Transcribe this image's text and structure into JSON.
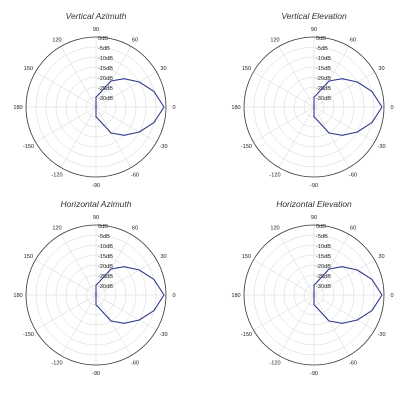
{
  "colors": {
    "pattern": "#2e3a8c",
    "outer_ring": "#333333",
    "grid": "#d4d4d4",
    "text": "#222222"
  },
  "angle_ticks": [
    "90",
    "60",
    "30",
    "0",
    "-30",
    "-60",
    "-90",
    "-120",
    "-150",
    "180",
    "150",
    "120"
  ],
  "radial_labels": [
    "0dB",
    "-5dB",
    "-10dB",
    "-15dB",
    "-20dB",
    "-25dB",
    "-30dB"
  ],
  "chart_data": [
    {
      "type": "polar-line",
      "title": "Vertical Azimuth",
      "theta_ticks_deg": [
        90,
        60,
        30,
        0,
        -30,
        -60,
        -90,
        -120,
        -150,
        180,
        150,
        120
      ],
      "r_ticks_db": [
        0,
        -5,
        -10,
        -15,
        -20,
        -25,
        -30
      ],
      "rlim_db": [
        -35,
        0
      ],
      "pattern": {
        "theta_deg": [
          -90,
          -80,
          -60,
          -45,
          -30,
          -15,
          0,
          15,
          30,
          45,
          60,
          80,
          90
        ],
        "gain_db": [
          -30,
          -29,
          -20,
          -15,
          -10,
          -5,
          -1,
          -5,
          -10,
          -15,
          -20,
          -29,
          -30
        ]
      }
    },
    {
      "type": "polar-line",
      "title": "Vertical Elevation",
      "theta_ticks_deg": [
        90,
        60,
        30,
        0,
        -30,
        -60,
        -90,
        -120,
        -150,
        180,
        150,
        120
      ],
      "r_ticks_db": [
        0,
        -5,
        -10,
        -15,
        -20,
        -25,
        -30
      ],
      "rlim_db": [
        -35,
        0
      ],
      "pattern": {
        "theta_deg": [
          -90,
          -80,
          -60,
          -45,
          -30,
          -15,
          0,
          15,
          30,
          45,
          60,
          80,
          90
        ],
        "gain_db": [
          -30,
          -29,
          -20,
          -15,
          -10,
          -5,
          -1,
          -5,
          -10,
          -15,
          -20,
          -29,
          -30
        ]
      }
    },
    {
      "type": "polar-line",
      "title": "Horizontal Azimuth",
      "theta_ticks_deg": [
        90,
        60,
        30,
        0,
        -30,
        -60,
        -90,
        -120,
        -150,
        180,
        150,
        120
      ],
      "r_ticks_db": [
        0,
        -5,
        -10,
        -15,
        -20,
        -25,
        -30
      ],
      "rlim_db": [
        -35,
        0
      ],
      "pattern": {
        "theta_deg": [
          -90,
          -80,
          -60,
          -45,
          -30,
          -15,
          0,
          15,
          30,
          45,
          60,
          80,
          90
        ],
        "gain_db": [
          -30,
          -29,
          -20,
          -15,
          -10,
          -5,
          -1,
          -5,
          -10,
          -15,
          -20,
          -29,
          -30
        ]
      }
    },
    {
      "type": "polar-line",
      "title": "Horizontal Elevation",
      "theta_ticks_deg": [
        90,
        60,
        30,
        0,
        -30,
        -60,
        -90,
        -120,
        -150,
        180,
        150,
        120
      ],
      "r_ticks_db": [
        0,
        -5,
        -10,
        -15,
        -20,
        -25,
        -30
      ],
      "rlim_db": [
        -35,
        0
      ],
      "pattern": {
        "theta_deg": [
          -90,
          -80,
          -60,
          -45,
          -30,
          -15,
          0,
          15,
          30,
          45,
          60,
          80,
          90
        ],
        "gain_db": [
          -30,
          -29,
          -20,
          -15,
          -10,
          -5,
          -1,
          -5,
          -10,
          -15,
          -20,
          -29,
          -30
        ]
      }
    }
  ]
}
